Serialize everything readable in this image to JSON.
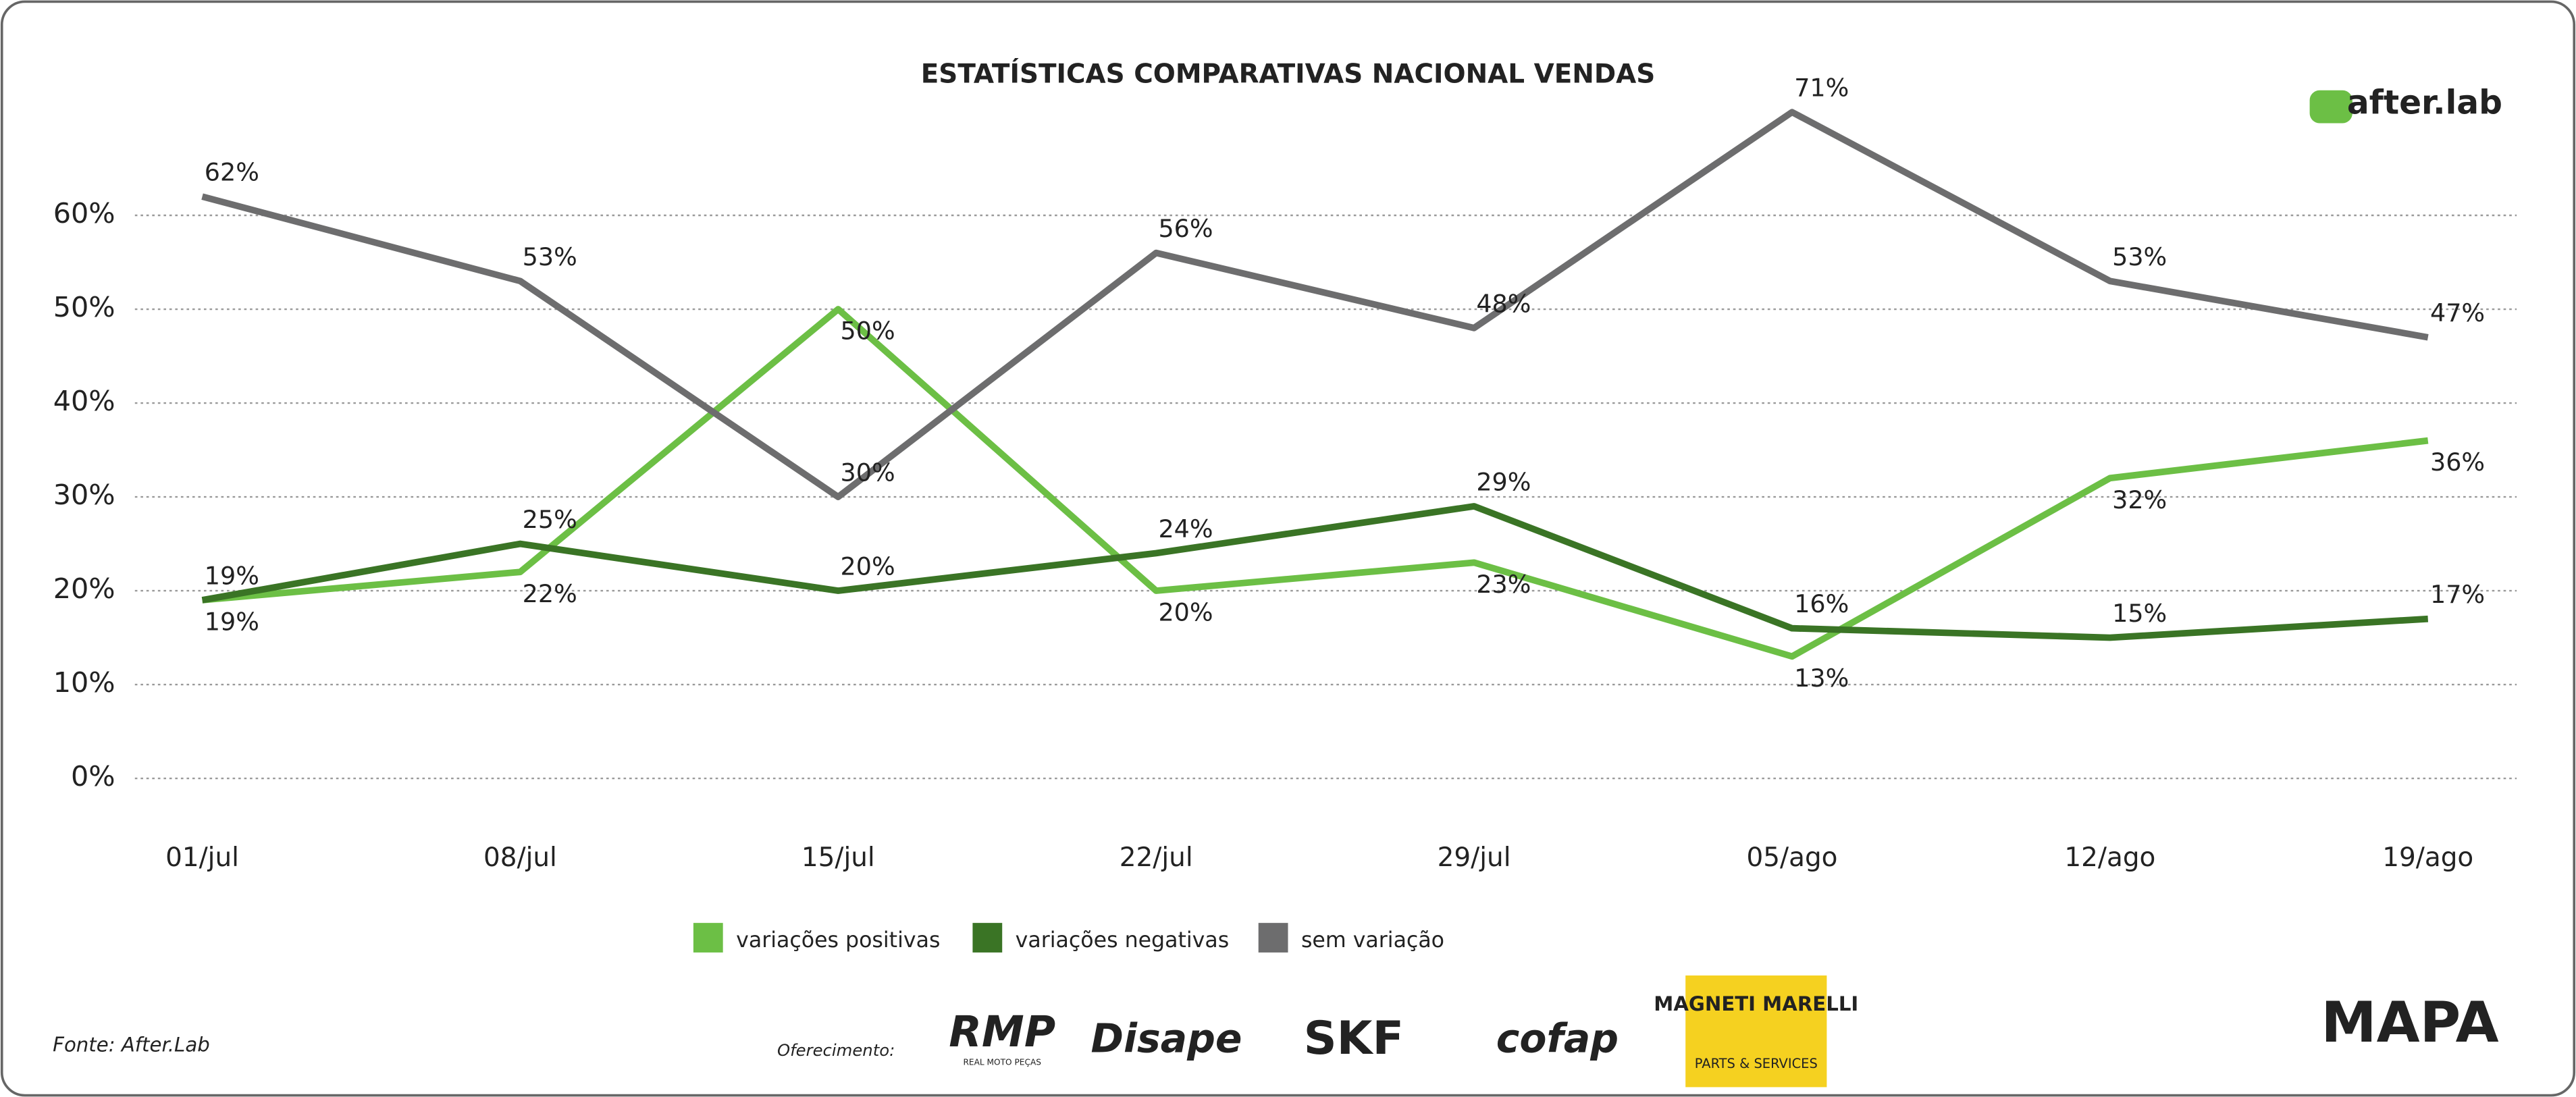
{
  "chart_data": {
    "type": "line",
    "title": "ESTATÍSTICAS COMPARATIVAS NACIONAL VENDAS",
    "categories": [
      "01/jul",
      "08/jul",
      "15/jul",
      "22/jul",
      "29/jul",
      "05/ago",
      "12/ago",
      "19/ago"
    ],
    "series": [
      {
        "name": "variações positivas",
        "color": "#6cbf45",
        "values": [
          19,
          22,
          50,
          20,
          23,
          13,
          32,
          36
        ],
        "value_labels": [
          "19%",
          "22%",
          "50%",
          "20%",
          "23%",
          "13%",
          "32%",
          "36%"
        ]
      },
      {
        "name": "variações negativas",
        "color": "#3a7425",
        "values": [
          19,
          25,
          20,
          24,
          29,
          16,
          15,
          17
        ],
        "value_labels": [
          "19%",
          "25%",
          "20%",
          "24%",
          "29%",
          "16%",
          "15%",
          "17%"
        ]
      },
      {
        "name": "sem variação",
        "color": "#6d6d6e",
        "values": [
          62,
          53,
          30,
          56,
          48,
          71,
          53,
          47
        ],
        "value_labels": [
          "62%",
          "53%",
          "30%",
          "56%",
          "48%",
          "71%",
          "53%",
          "47%"
        ]
      }
    ],
    "ylim": [
      0,
      70
    ],
    "yticks": [
      {
        "value": 0,
        "label": "0%"
      },
      {
        "value": 10,
        "label": "10%"
      },
      {
        "value": 20,
        "label": "20%"
      },
      {
        "value": 30,
        "label": "30%"
      },
      {
        "value": 40,
        "label": "40%"
      },
      {
        "value": 50,
        "label": "50%"
      },
      {
        "value": 60,
        "label": "60%"
      }
    ],
    "grid": true,
    "legend": "bottom"
  },
  "brand": "after.lab",
  "footer": {
    "source": "Fonte: After.Lab",
    "sponsor_label": "Oferecimento:",
    "sponsors": [
      "RMP",
      "Disape",
      "SKF",
      "cofap",
      "MAGNETI MARELLI"
    ],
    "sponsor_subtexts": [
      "REAL MOTO PEÇAS",
      "PARTS & SERVICES"
    ],
    "partner": "MAPA"
  }
}
